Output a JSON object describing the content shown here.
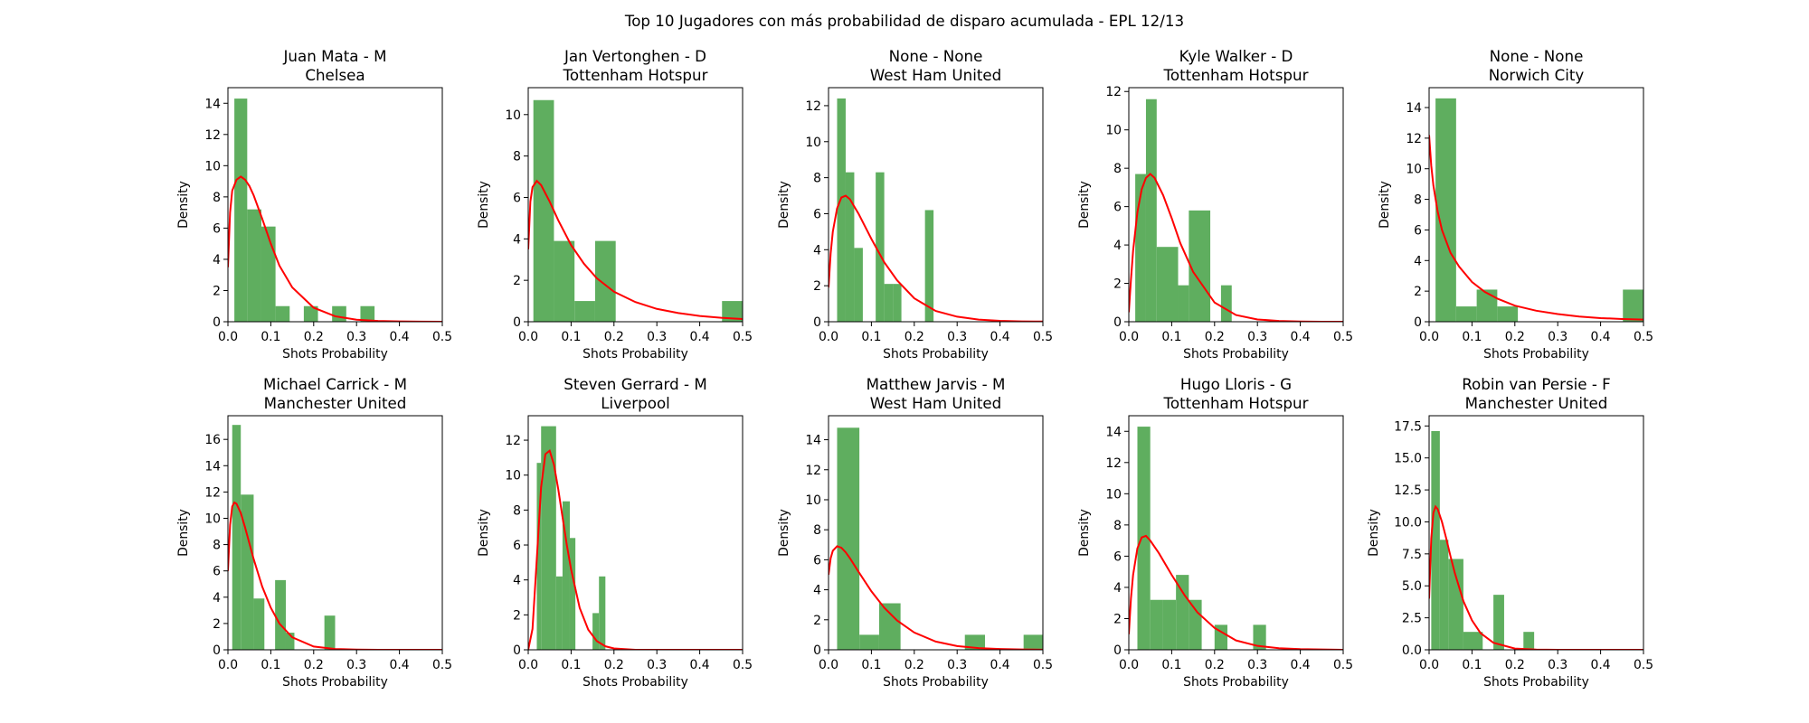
{
  "figure": {
    "title": "Top 10 Jugadores con más probabilidad de disparo acumulada - EPL 12/13",
    "bar_color": "#5fae5f",
    "curve_color": "#ff0000"
  },
  "chart_data": [
    {
      "type": "bar",
      "title": "Juan Mata - M\nChelsea",
      "xlabel": "Shots Probability",
      "ylabel": "Density",
      "xlim": [
        0,
        0.5
      ],
      "ylim": [
        0,
        15
      ],
      "xticks": [
        "0.0",
        "0.1",
        "0.2",
        "0.3",
        "0.4",
        "0.5"
      ],
      "yticks": [
        "0",
        "2",
        "4",
        "6",
        "8",
        "10",
        "12",
        "14"
      ],
      "series": [
        {
          "type": "histogram",
          "bins": [
            [
              0.015,
              0.045,
              14.3
            ],
            [
              0.045,
              0.078,
              7.2
            ],
            [
              0.078,
              0.111,
              6.1
            ],
            [
              0.111,
              0.144,
              1.0
            ],
            [
              0.177,
              0.21,
              1.0
            ],
            [
              0.243,
              0.276,
              1.0
            ],
            [
              0.309,
              0.342,
              1.0
            ]
          ]
        },
        {
          "type": "line",
          "x": [
            0,
            0.005,
            0.01,
            0.02,
            0.03,
            0.04,
            0.05,
            0.06,
            0.08,
            0.1,
            0.12,
            0.15,
            0.2,
            0.25,
            0.3,
            0.35,
            0.4,
            0.45,
            0.5
          ],
          "y": [
            3.5,
            7.0,
            8.4,
            9.1,
            9.3,
            9.1,
            8.7,
            8.1,
            6.6,
            5.0,
            3.6,
            2.2,
            0.9,
            0.35,
            0.13,
            0.05,
            0.02,
            0.01,
            0.0
          ]
        }
      ]
    },
    {
      "type": "bar",
      "title": "Jan Vertonghen - D\nTottenham Hotspur",
      "xlabel": "Shots Probability",
      "ylabel": "Density",
      "xlim": [
        0,
        0.5
      ],
      "ylim": [
        0,
        11.3
      ],
      "xticks": [
        "0.0",
        "0.1",
        "0.2",
        "0.3",
        "0.4",
        "0.5"
      ],
      "yticks": [
        "0",
        "2",
        "4",
        "6",
        "8",
        "10"
      ],
      "series": [
        {
          "type": "histogram",
          "bins": [
            [
              0.012,
              0.06,
              10.7
            ],
            [
              0.06,
              0.108,
              3.9
            ],
            [
              0.108,
              0.156,
              1.0
            ],
            [
              0.156,
              0.204,
              3.9
            ],
            [
              0.452,
              0.5,
              1.0
            ]
          ]
        },
        {
          "type": "line",
          "x": [
            0,
            0.005,
            0.01,
            0.02,
            0.03,
            0.05,
            0.07,
            0.1,
            0.13,
            0.16,
            0.2,
            0.25,
            0.3,
            0.35,
            0.4,
            0.45,
            0.5
          ],
          "y": [
            3.5,
            5.8,
            6.5,
            6.8,
            6.6,
            5.8,
            4.9,
            3.7,
            2.8,
            2.1,
            1.45,
            0.95,
            0.62,
            0.42,
            0.28,
            0.19,
            0.13
          ]
        }
      ]
    },
    {
      "type": "bar",
      "title": "None - None\nWest Ham United",
      "xlabel": "Shots Probability",
      "ylabel": "Density",
      "xlim": [
        0,
        0.5
      ],
      "ylim": [
        0,
        13
      ],
      "xticks": [
        "0.0",
        "0.1",
        "0.2",
        "0.3",
        "0.4",
        "0.5"
      ],
      "yticks": [
        "0",
        "2",
        "4",
        "6",
        "8",
        "10",
        "12"
      ],
      "series": [
        {
          "type": "histogram",
          "bins": [
            [
              0.02,
              0.04,
              12.4
            ],
            [
              0.04,
              0.06,
              8.3
            ],
            [
              0.06,
              0.08,
              4.1
            ],
            [
              0.11,
              0.13,
              8.3
            ],
            [
              0.13,
              0.15,
              2.1
            ],
            [
              0.15,
              0.17,
              2.1
            ],
            [
              0.225,
              0.245,
              6.2
            ]
          ]
        },
        {
          "type": "line",
          "x": [
            0,
            0.005,
            0.01,
            0.02,
            0.03,
            0.04,
            0.05,
            0.07,
            0.1,
            0.13,
            0.16,
            0.2,
            0.25,
            0.3,
            0.35,
            0.4,
            0.45,
            0.5
          ],
          "y": [
            1.9,
            3.8,
            5.0,
            6.3,
            6.9,
            7.0,
            6.8,
            6.0,
            4.6,
            3.3,
            2.3,
            1.3,
            0.6,
            0.28,
            0.12,
            0.05,
            0.02,
            0.01
          ]
        }
      ]
    },
    {
      "type": "bar",
      "title": "Kyle Walker - D\nTottenham Hotspur",
      "xlabel": "Shots Probability",
      "ylabel": "Density",
      "xlim": [
        0,
        0.5
      ],
      "ylim": [
        0,
        12.2
      ],
      "xticks": [
        "0.0",
        "0.1",
        "0.2",
        "0.3",
        "0.4",
        "0.5"
      ],
      "yticks": [
        "0",
        "2",
        "4",
        "6",
        "8",
        "10",
        "12"
      ],
      "series": [
        {
          "type": "histogram",
          "bins": [
            [
              0.015,
              0.04,
              7.7
            ],
            [
              0.04,
              0.065,
              11.6
            ],
            [
              0.065,
              0.115,
              3.9
            ],
            [
              0.115,
              0.14,
              1.9
            ],
            [
              0.14,
              0.19,
              5.8
            ],
            [
              0.215,
              0.24,
              1.9
            ]
          ]
        },
        {
          "type": "line",
          "x": [
            0,
            0.005,
            0.01,
            0.02,
            0.03,
            0.04,
            0.05,
            0.06,
            0.08,
            0.1,
            0.12,
            0.15,
            0.2,
            0.25,
            0.3,
            0.35,
            0.4,
            0.45,
            0.5
          ],
          "y": [
            0.5,
            2.2,
            3.7,
            5.7,
            6.9,
            7.5,
            7.7,
            7.5,
            6.6,
            5.4,
            4.1,
            2.6,
            1.0,
            0.35,
            0.12,
            0.04,
            0.01,
            0.0,
            0.0
          ]
        }
      ]
    },
    {
      "type": "bar",
      "title": "None - None\nNorwich City",
      "xlabel": "Shots Probability",
      "ylabel": "Density",
      "xlim": [
        0,
        0.5
      ],
      "ylim": [
        0,
        15.3
      ],
      "xticks": [
        "0.0",
        "0.1",
        "0.2",
        "0.3",
        "0.4",
        "0.5"
      ],
      "yticks": [
        "0",
        "2",
        "4",
        "6",
        "8",
        "10",
        "12",
        "14"
      ],
      "series": [
        {
          "type": "histogram",
          "bins": [
            [
              0.015,
              0.063,
              14.6
            ],
            [
              0.063,
              0.111,
              1.0
            ],
            [
              0.111,
              0.159,
              2.1
            ],
            [
              0.159,
              0.207,
              1.0
            ],
            [
              0.452,
              0.5,
              2.1
            ]
          ]
        },
        {
          "type": "line",
          "x": [
            0,
            0.005,
            0.01,
            0.02,
            0.03,
            0.05,
            0.07,
            0.1,
            0.13,
            0.16,
            0.2,
            0.25,
            0.3,
            0.35,
            0.4,
            0.45,
            0.5
          ],
          "y": [
            12.2,
            10.2,
            8.9,
            7.2,
            6.0,
            4.5,
            3.6,
            2.6,
            1.95,
            1.5,
            1.05,
            0.72,
            0.5,
            0.34,
            0.24,
            0.18,
            0.14
          ]
        }
      ]
    },
    {
      "type": "bar",
      "title": "Michael Carrick - M\nManchester United",
      "xlabel": "Shots Probability",
      "ylabel": "Density",
      "xlim": [
        0,
        0.5
      ],
      "ylim": [
        0,
        17.8
      ],
      "xticks": [
        "0.0",
        "0.1",
        "0.2",
        "0.3",
        "0.4",
        "0.5"
      ],
      "yticks": [
        "0",
        "2",
        "4",
        "6",
        "8",
        "10",
        "12",
        "14",
        "16"
      ],
      "series": [
        {
          "type": "histogram",
          "bins": [
            [
              0.01,
              0.03,
              17.1
            ],
            [
              0.03,
              0.06,
              11.8
            ],
            [
              0.06,
              0.085,
              3.9
            ],
            [
              0.11,
              0.135,
              5.3
            ],
            [
              0.135,
              0.155,
              1.3
            ],
            [
              0.225,
              0.25,
              2.6
            ]
          ]
        },
        {
          "type": "line",
          "x": [
            0,
            0.005,
            0.01,
            0.015,
            0.02,
            0.03,
            0.04,
            0.05,
            0.06,
            0.08,
            0.1,
            0.12,
            0.15,
            0.2,
            0.25,
            0.3,
            0.35,
            0.4,
            0.45,
            0.5
          ],
          "y": [
            6.0,
            9.5,
            10.9,
            11.2,
            11.1,
            10.4,
            9.3,
            8.1,
            6.9,
            4.8,
            3.2,
            2.0,
            0.95,
            0.25,
            0.06,
            0.02,
            0.0,
            0.0,
            0.0,
            0.0
          ]
        }
      ]
    },
    {
      "type": "bar",
      "title": "Steven Gerrard - M\nLiverpool",
      "xlabel": "Shots Probability",
      "ylabel": "Density",
      "xlim": [
        0,
        0.5
      ],
      "ylim": [
        0,
        13.4
      ],
      "xticks": [
        "0.0",
        "0.1",
        "0.2",
        "0.3",
        "0.4",
        "0.5"
      ],
      "yticks": [
        "0",
        "2",
        "4",
        "6",
        "8",
        "10",
        "12"
      ],
      "series": [
        {
          "type": "histogram",
          "bins": [
            [
              0.02,
              0.03,
              10.7
            ],
            [
              0.03,
              0.065,
              12.8
            ],
            [
              0.065,
              0.08,
              4.2
            ],
            [
              0.08,
              0.097,
              8.5
            ],
            [
              0.097,
              0.11,
              6.4
            ],
            [
              0.15,
              0.165,
              2.1
            ],
            [
              0.165,
              0.18,
              4.2
            ]
          ]
        },
        {
          "type": "line",
          "x": [
            0,
            0.01,
            0.02,
            0.03,
            0.04,
            0.05,
            0.06,
            0.07,
            0.08,
            0.09,
            0.1,
            0.12,
            0.14,
            0.16,
            0.18,
            0.2,
            0.25,
            0.3,
            0.35,
            0.4,
            0.45,
            0.5
          ],
          "y": [
            0.0,
            1.2,
            5.2,
            9.3,
            11.2,
            11.4,
            10.6,
            9.2,
            7.6,
            6.0,
            4.6,
            2.4,
            1.15,
            0.5,
            0.2,
            0.08,
            0.0,
            0.0,
            0.0,
            0.0,
            0.0,
            0.0
          ]
        }
      ]
    },
    {
      "type": "bar",
      "title": "Matthew Jarvis - M\nWest Ham United",
      "xlabel": "Shots Probability",
      "ylabel": "Density",
      "xlim": [
        0,
        0.5
      ],
      "ylim": [
        0,
        15.6
      ],
      "xticks": [
        "0.0",
        "0.1",
        "0.2",
        "0.3",
        "0.4",
        "0.5"
      ],
      "yticks": [
        "0",
        "2",
        "4",
        "6",
        "8",
        "10",
        "12",
        "14"
      ],
      "series": [
        {
          "type": "histogram",
          "bins": [
            [
              0.02,
              0.072,
              14.8
            ],
            [
              0.072,
              0.118,
              1.0
            ],
            [
              0.118,
              0.168,
              3.1
            ],
            [
              0.318,
              0.365,
              1.0
            ],
            [
              0.455,
              0.5,
              1.0
            ]
          ]
        },
        {
          "type": "line",
          "x": [
            0,
            0.005,
            0.01,
            0.02,
            0.03,
            0.04,
            0.05,
            0.07,
            0.1,
            0.13,
            0.16,
            0.2,
            0.25,
            0.3,
            0.35,
            0.4,
            0.45,
            0.5
          ],
          "y": [
            5.0,
            6.1,
            6.6,
            6.9,
            6.8,
            6.5,
            6.1,
            5.2,
            3.9,
            2.8,
            1.95,
            1.15,
            0.55,
            0.25,
            0.11,
            0.05,
            0.02,
            0.01
          ]
        }
      ]
    },
    {
      "type": "bar",
      "title": "Hugo Lloris - G\nTottenham Hotspur",
      "xlabel": "Shots Probability",
      "ylabel": "Density",
      "xlim": [
        0,
        0.5
      ],
      "ylim": [
        0,
        15
      ],
      "xticks": [
        "0.0",
        "0.1",
        "0.2",
        "0.3",
        "0.4",
        "0.5"
      ],
      "yticks": [
        "0",
        "2",
        "4",
        "6",
        "8",
        "10",
        "12",
        "14"
      ],
      "series": [
        {
          "type": "histogram",
          "bins": [
            [
              0.02,
              0.05,
              14.3
            ],
            [
              0.05,
              0.08,
              3.2
            ],
            [
              0.08,
              0.11,
              3.2
            ],
            [
              0.11,
              0.14,
              4.8
            ],
            [
              0.14,
              0.17,
              3.2
            ],
            [
              0.2,
              0.23,
              1.6
            ],
            [
              0.29,
              0.32,
              1.6
            ]
          ]
        },
        {
          "type": "line",
          "x": [
            0,
            0.005,
            0.01,
            0.02,
            0.03,
            0.04,
            0.05,
            0.07,
            0.1,
            0.13,
            0.16,
            0.2,
            0.25,
            0.3,
            0.35,
            0.4,
            0.45,
            0.5
          ],
          "y": [
            1.0,
            3.3,
            4.8,
            6.5,
            7.2,
            7.3,
            7.0,
            6.2,
            4.8,
            3.5,
            2.4,
            1.4,
            0.6,
            0.25,
            0.1,
            0.04,
            0.02,
            0.0
          ]
        }
      ]
    },
    {
      "type": "bar",
      "title": "Robin van Persie - F\nManchester United",
      "xlabel": "Shots Probability",
      "ylabel": "Density",
      "xlim": [
        0,
        0.5
      ],
      "ylim": [
        0,
        18.3
      ],
      "xticks": [
        "0.0",
        "0.1",
        "0.2",
        "0.3",
        "0.4",
        "0.5"
      ],
      "yticks": [
        "0.0",
        "2.5",
        "5.0",
        "7.5",
        "10.0",
        "12.5",
        "15.0",
        "17.5"
      ],
      "series": [
        {
          "type": "histogram",
          "bins": [
            [
              0.005,
              0.025,
              17.1
            ],
            [
              0.025,
              0.045,
              8.6
            ],
            [
              0.045,
              0.08,
              7.1
            ],
            [
              0.08,
              0.125,
              1.4
            ],
            [
              0.15,
              0.175,
              4.3
            ],
            [
              0.22,
              0.245,
              1.4
            ]
          ]
        },
        {
          "type": "line",
          "x": [
            0,
            0.005,
            0.01,
            0.015,
            0.02,
            0.03,
            0.04,
            0.05,
            0.06,
            0.08,
            0.1,
            0.12,
            0.15,
            0.2,
            0.25,
            0.3,
            0.35,
            0.4,
            0.45,
            0.5
          ],
          "y": [
            4.0,
            8.7,
            10.7,
            11.2,
            11.0,
            10.0,
            8.7,
            7.3,
            6.0,
            3.8,
            2.3,
            1.3,
            0.55,
            0.1,
            0.02,
            0.0,
            0.0,
            0.0,
            0.0,
            0.0
          ]
        }
      ]
    }
  ]
}
